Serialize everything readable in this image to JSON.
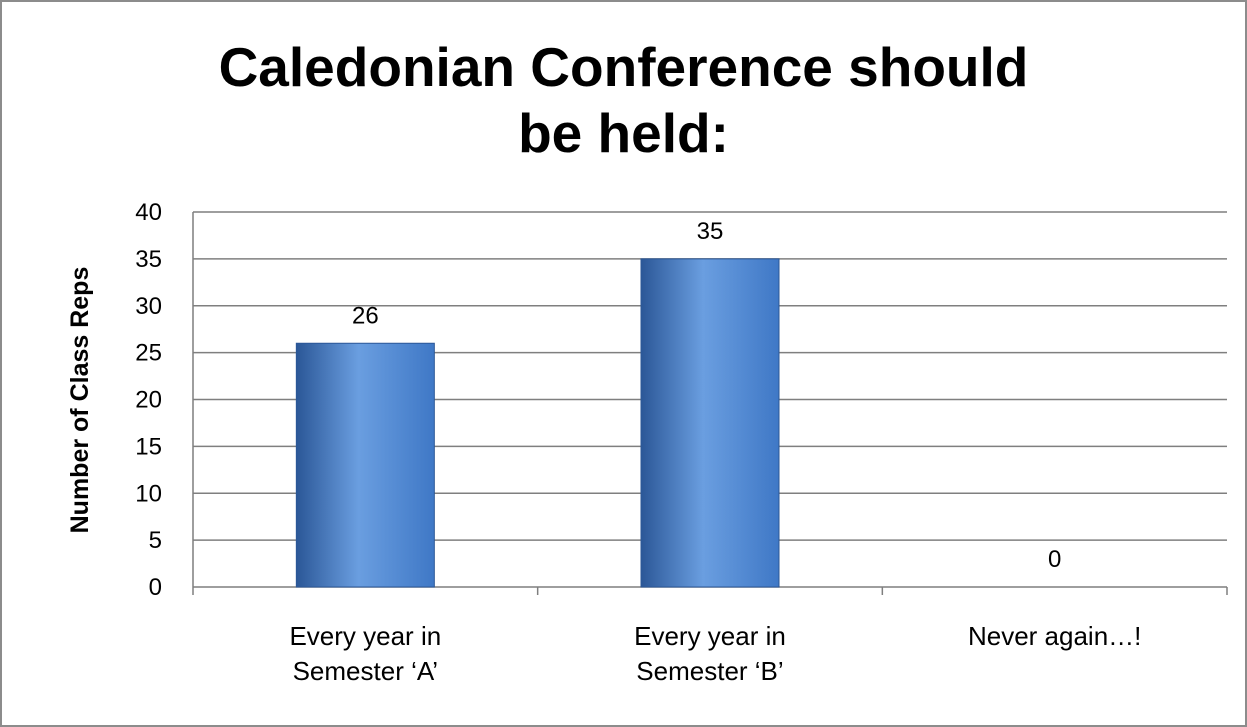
{
  "chart_data": {
    "type": "bar",
    "title": "Caledonian Conference should\nbe held:",
    "xlabel": "",
    "ylabel": "Number of Class Reps",
    "categories": [
      [
        "Every year in",
        "Semester ‘A’"
      ],
      [
        "Every year in",
        "Semester ‘B’"
      ],
      [
        "Never again…!"
      ]
    ],
    "values": [
      26,
      35,
      0
    ],
    "data_labels": [
      "26",
      "35",
      "0"
    ],
    "ylim": [
      0,
      40
    ],
    "yticks": [
      0,
      5,
      10,
      15,
      20,
      25,
      30,
      35,
      40
    ],
    "grid": true,
    "legend": "none",
    "colors": {
      "bar": "#3f78c6",
      "bar_light": "#6a9ee0",
      "bar_dark": "#2b5797",
      "grid": "#7f7f7f",
      "frame": "#8c8c8c"
    }
  }
}
